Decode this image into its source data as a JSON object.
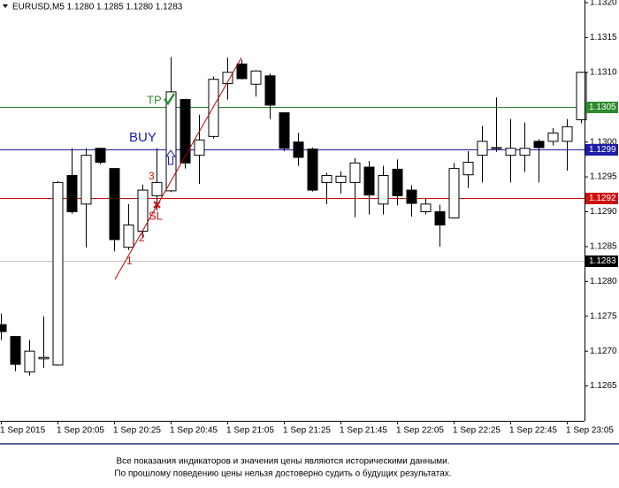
{
  "chart_data": {
    "type": "candlestick",
    "title": "EURUSD,M5  1.1280 1.1285 1.1280 1.1283",
    "categories": [
      "1 Sep 2015",
      null,
      null,
      null,
      "1 Sep 20:05",
      null,
      null,
      null,
      "1 Sep 20:25",
      null,
      null,
      null,
      "1 Sep 20:45",
      null,
      null,
      null,
      "1 Sep 21:05",
      null,
      null,
      null,
      "1 Sep 21:25",
      null,
      null,
      null,
      "1 Sep 21:45",
      null,
      null,
      null,
      "1 Sep 22:05",
      null,
      null,
      null,
      "1 Sep 22:25",
      null,
      null,
      null,
      "1 Sep 22:45",
      null,
      null,
      null,
      "1 Sep 23:05",
      null
    ],
    "open": [
      1.12738,
      1.12721,
      1.1267,
      1.12689,
      1.1268,
      1.12952,
      1.12911,
      1.12991,
      1.12962,
      1.12849,
      1.12872,
      1.12923,
      1.1293,
      1.13061,
      1.12981,
      1.13008,
      1.13084,
      1.13112,
      1.13083,
      1.13095,
      1.13042,
      1.13,
      1.1299,
      1.12942,
      1.12942,
      1.12942,
      1.12964,
      1.12911,
      1.12961,
      1.12931,
      1.129,
      1.129,
      1.12891,
      1.12953,
      1.12981,
      1.12991,
      1.12981,
      1.12981,
      1.13001,
      1.13001,
      1.13001,
      1.13032
    ],
    "high": [
      1.12754,
      1.12722,
      1.12716,
      1.1275,
      1.12944,
      1.12991,
      1.12991,
      1.12992,
      1.12963,
      1.12911,
      1.12939,
      1.12991,
      1.13122,
      1.13062,
      1.13039,
      1.13094,
      1.13121,
      1.13118,
      1.13103,
      1.13098,
      1.13042,
      1.13013,
      1.12992,
      1.12956,
      1.12958,
      1.12977,
      1.12973,
      1.12966,
      1.12975,
      1.12938,
      1.1292,
      1.1291,
      1.1297,
      1.12987,
      1.13023,
      1.13064,
      1.13033,
      1.13028,
      1.13004,
      1.1302,
      1.13033,
      1.13101
    ],
    "low": [
      1.12716,
      1.12671,
      1.12665,
      1.12676,
      1.12679,
      1.12897,
      1.12849,
      1.12968,
      1.12843,
      1.12845,
      1.12862,
      1.12902,
      1.12928,
      1.12962,
      1.1294,
      1.13005,
      1.13061,
      1.1309,
      1.13065,
      1.13033,
      1.12987,
      1.12966,
      1.12929,
      1.12911,
      1.12926,
      1.12892,
      1.12896,
      1.12896,
      1.12909,
      1.12893,
      1.12896,
      1.1285,
      1.1289,
      1.12934,
      1.12942,
      1.12986,
      1.12942,
      1.12957,
      1.12942,
      1.12995,
      1.12959,
      1.13027
    ],
    "close": [
      1.12728,
      1.12681,
      1.127,
      1.12691,
      1.12942,
      1.129,
      1.12981,
      1.12971,
      1.1286,
      1.12881,
      1.12931,
      1.12942,
      1.13072,
      1.1297,
      1.13003,
      1.1309,
      1.131,
      1.13091,
      1.13102,
      1.13053,
      1.12991,
      1.12978,
      1.12931,
      1.12952,
      1.12951,
      1.1297,
      1.12924,
      1.12952,
      1.12923,
      1.12912,
      1.12911,
      1.12881,
      1.12962,
      1.12971,
      1.13001,
      1.12992,
      1.12991,
      1.12991,
      1.12992,
      1.13013,
      1.13022,
      1.131
    ],
    "up_color": "#ffffff",
    "down_color": "#000000",
    "ylim": [
      1.126,
      1.132
    ],
    "yticks": [
      1.1265,
      {
        "value": 1.127,
        "label": "1.1270"
      },
      1.1275,
      {
        "value": 1.128,
        "label": "1.1280"
      },
      1.1285,
      {
        "value": 1.129,
        "label": "1.1290"
      },
      1.1295,
      {
        "value": 1.13,
        "label": "1.1300"
      },
      1.1305,
      {
        "value": 1.131,
        "label": "1.1310"
      },
      1.1315,
      {
        "value": 1.132,
        "label": "1.1320"
      }
    ],
    "levels": [
      {
        "value": 1.1305,
        "color": "#2e8b2e"
      },
      {
        "value": 1.1299,
        "color": "#1c1ca8"
      },
      {
        "value": 1.1292,
        "color": "#d01010"
      },
      {
        "value": 1.1283,
        "color": "#c0c0c0",
        "label_color": "#000000"
      }
    ],
    "trendline": {
      "values": [
        1.12803,
        1.13121
      ],
      "color": "#c00000"
    },
    "annotations": {
      "tp": "TP",
      "buy": "BUY",
      "sl": "SL",
      "waves": [
        "1",
        "2",
        "3"
      ]
    },
    "footer": [
      "Все показания индикаторов и значения цены являются историческими данными.",
      "По прошлому поведению цены нельзя достоверно судить о будущих результатах."
    ]
  }
}
